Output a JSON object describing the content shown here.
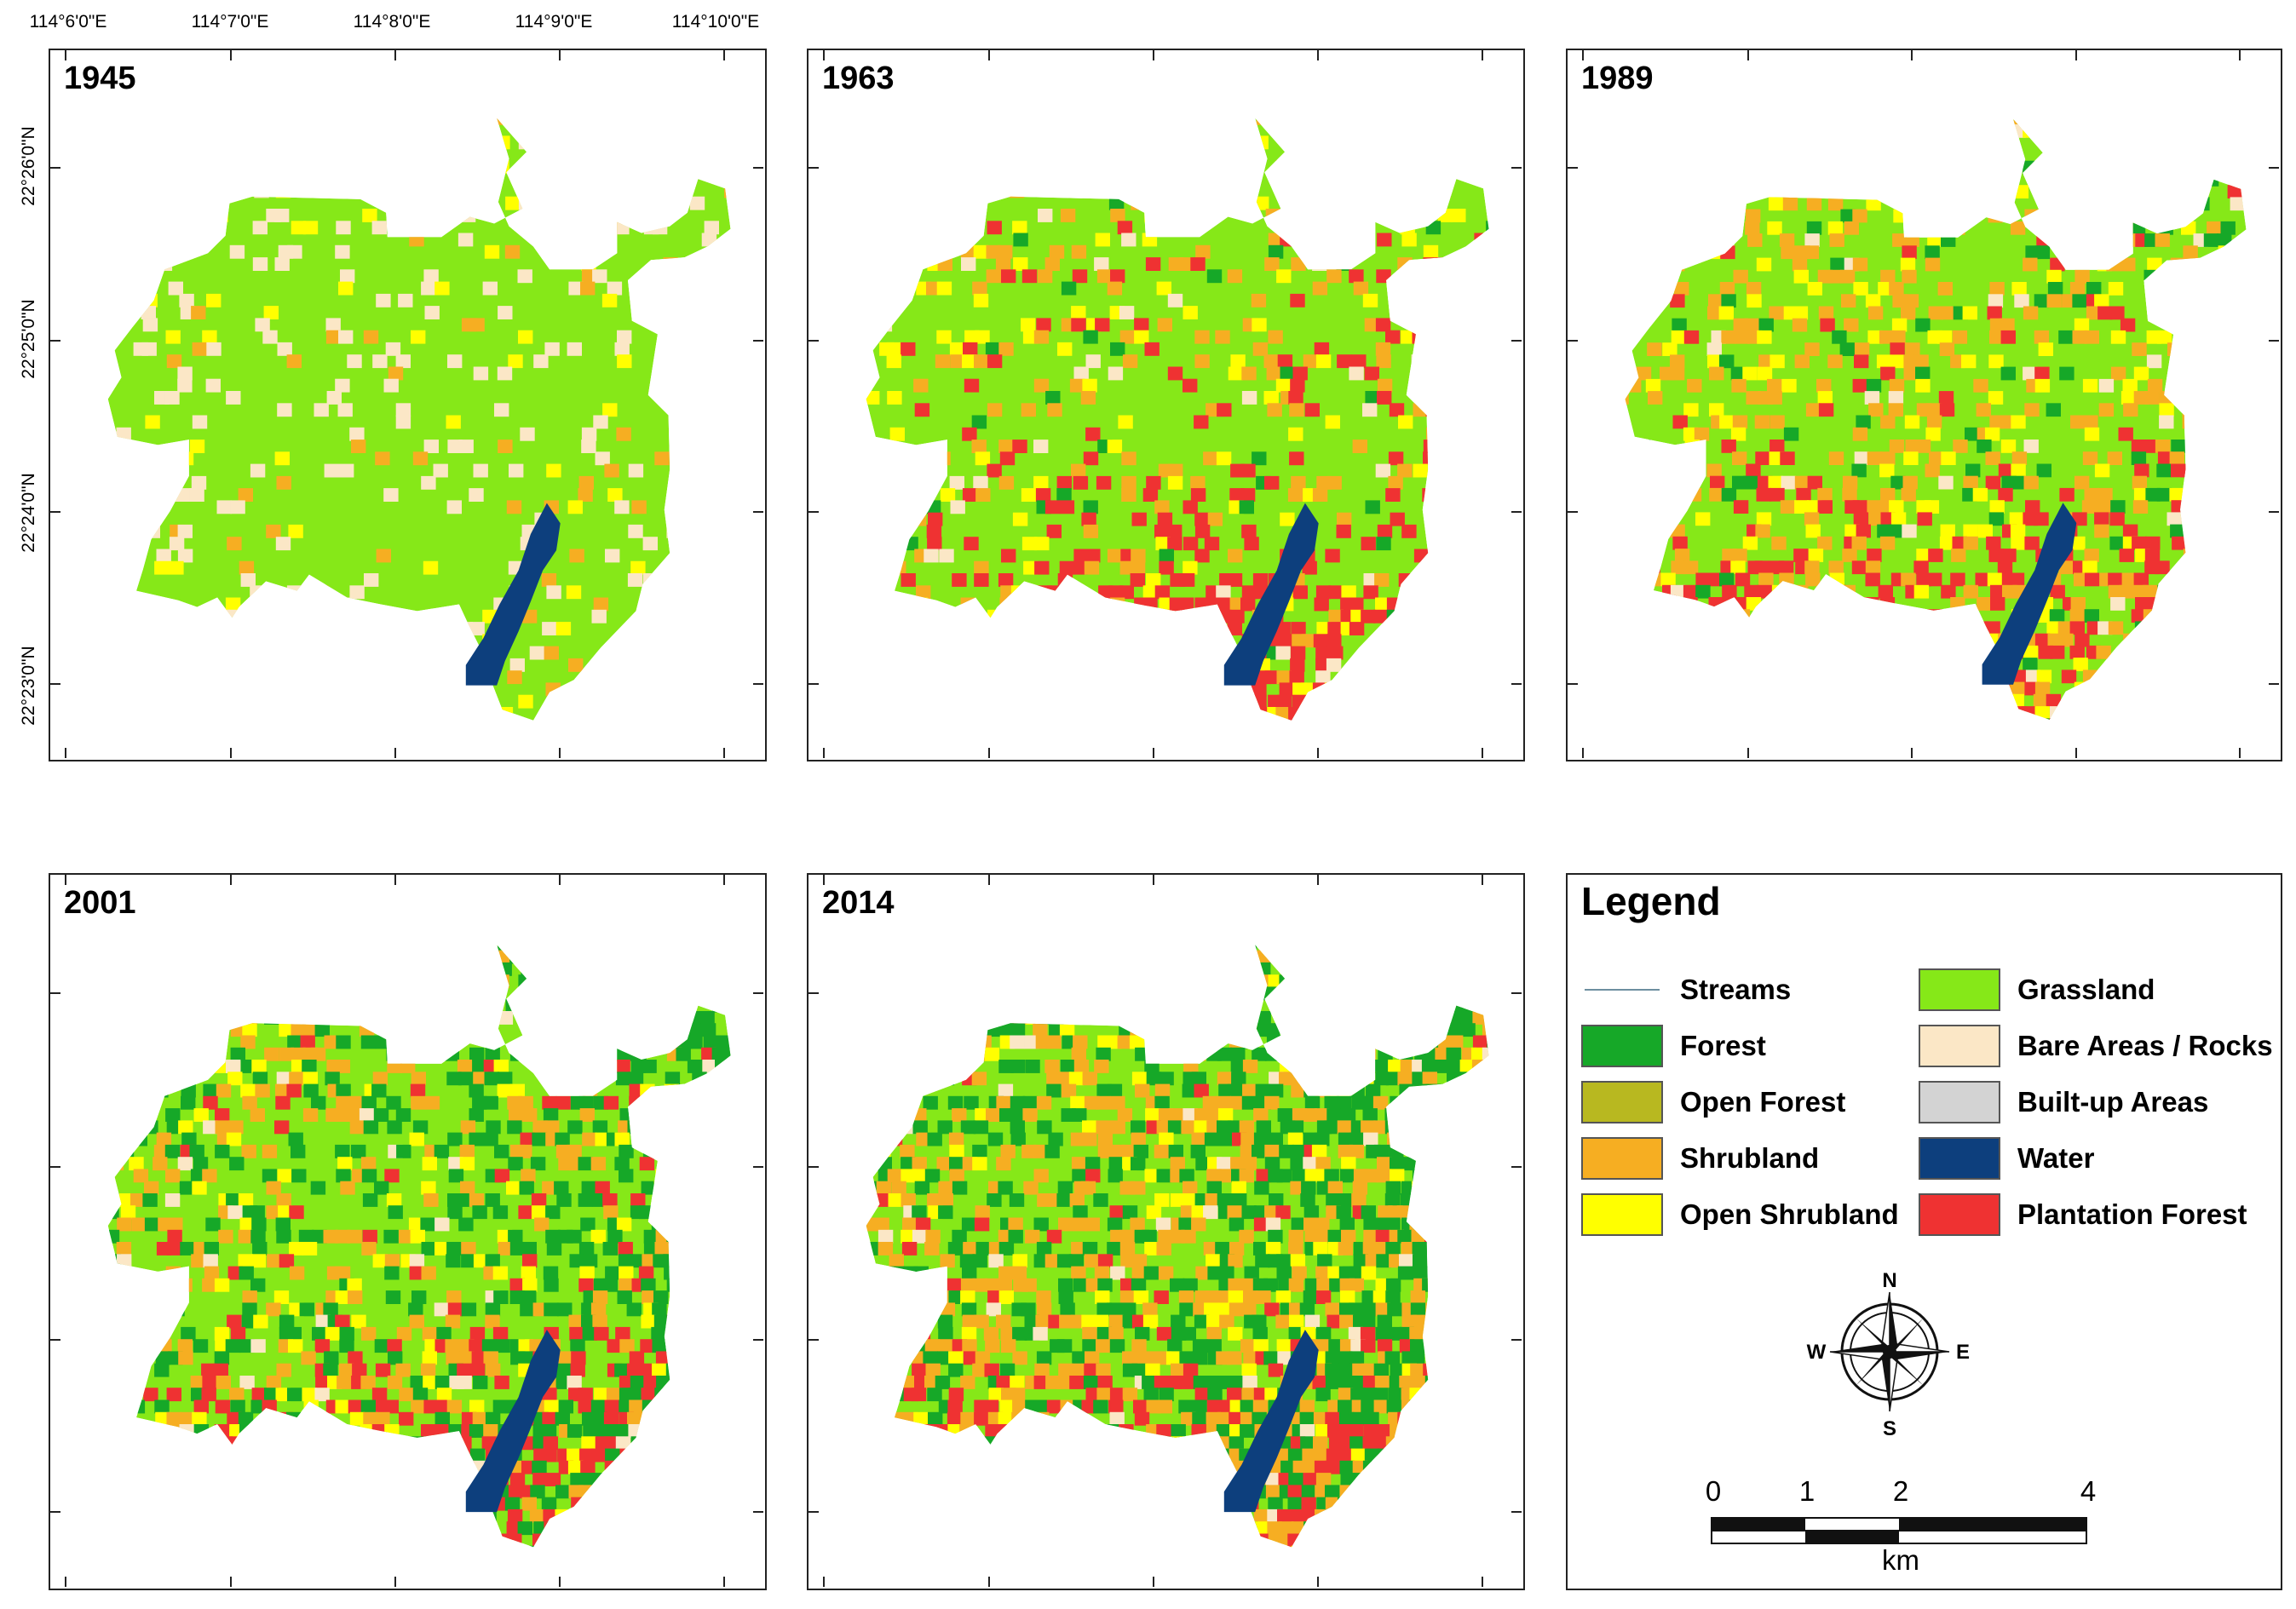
{
  "coordinates": {
    "longitudes": [
      "114°6'0\"E",
      "114°7'0\"E",
      "114°8'0\"E",
      "114°9'0\"E",
      "114°10'0\"E"
    ],
    "latitudes": [
      "22°26'0\"N",
      "22°25'0\"N",
      "22°24'0\"N",
      "22°23'0\"N"
    ]
  },
  "panels": [
    {
      "year": "1945",
      "composition": {
        "grassland": 0.86,
        "bare": 0.08,
        "shrubland": 0.03,
        "forest": 0.0,
        "plantation": 0.0,
        "open_shrubland": 0.03
      }
    },
    {
      "year": "1963",
      "composition": {
        "grassland": 0.62,
        "plantation": 0.2,
        "shrubland": 0.08,
        "open_shrubland": 0.06,
        "forest": 0.02,
        "bare": 0.02
      }
    },
    {
      "year": "1989",
      "composition": {
        "grassland": 0.5,
        "plantation": 0.18,
        "shrubland": 0.15,
        "open_shrubland": 0.09,
        "forest": 0.06,
        "bare": 0.02
      }
    },
    {
      "year": "2001",
      "composition": {
        "grassland": 0.38,
        "forest": 0.25,
        "plantation": 0.16,
        "shrubland": 0.13,
        "open_shrubland": 0.06,
        "bare": 0.02
      }
    },
    {
      "year": "2014",
      "composition": {
        "grassland": 0.22,
        "forest": 0.32,
        "shrubland": 0.25,
        "plantation": 0.12,
        "open_shrubland": 0.07,
        "bare": 0.02
      }
    }
  ],
  "legend": {
    "title": "Legend",
    "items": [
      {
        "label": "Streams",
        "type": "line",
        "color": "#6d8fa0"
      },
      {
        "label": "Forest",
        "type": "fill",
        "color": "#16a828"
      },
      {
        "label": "Open Forest",
        "type": "fill",
        "color": "#b8b820"
      },
      {
        "label": "Shrubland",
        "type": "fill",
        "color": "#f6ae22"
      },
      {
        "label": "Open Shrubland",
        "type": "fill",
        "color": "#ffff00"
      },
      {
        "label": "Grassland",
        "type": "fill",
        "color": "#86e818"
      },
      {
        "label": "Bare Areas / Rocks",
        "type": "fill",
        "color": "#fbe7c6"
      },
      {
        "label": "Built-up Areas",
        "type": "fill",
        "color": "#d3d3d3"
      },
      {
        "label": "Water",
        "type": "fill",
        "color": "#0d3f7d"
      },
      {
        "label": "Plantation Forest",
        "type": "fill",
        "color": "#ef3232"
      }
    ]
  },
  "compass": {
    "north": "N",
    "south": "S",
    "east": "E",
    "west": "W"
  },
  "scale_bar": {
    "labels": [
      "0",
      "1",
      "2",
      "4"
    ],
    "unit": "km"
  }
}
